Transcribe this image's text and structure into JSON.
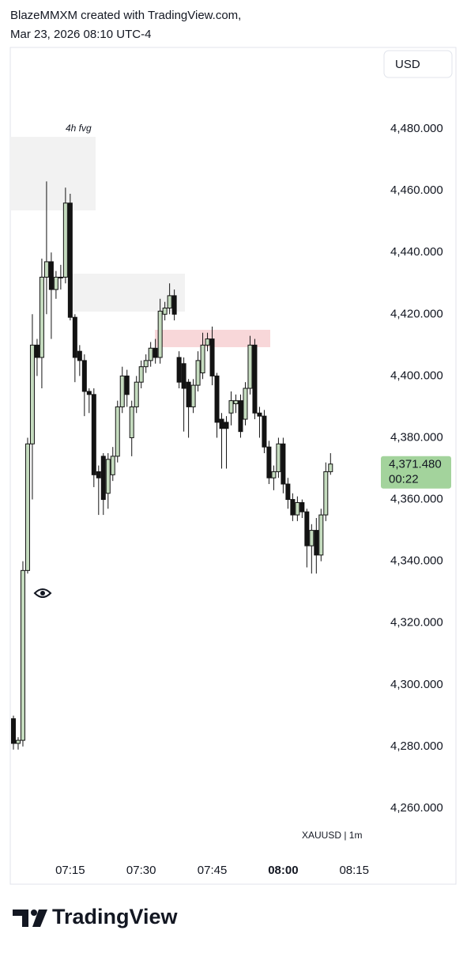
{
  "header": {
    "line1": "BlazeMMXM created with TradingView.com,",
    "line2": "Mar 23, 2026 08:10 UTC-4"
  },
  "currency_button": "USD",
  "symbol_label": "XAUUSD | 1m",
  "brand": "TradingView",
  "chart_data": {
    "type": "candlestick",
    "annotation": "4h fvg",
    "x": [
      "07:03",
      "07:04",
      "07:05",
      "07:06",
      "07:07",
      "07:08",
      "07:09",
      "07:10",
      "07:11",
      "07:12",
      "07:13",
      "07:14",
      "07:15",
      "07:16",
      "07:17",
      "07:18",
      "07:19",
      "07:20",
      "07:21",
      "07:22",
      "07:23",
      "07:24",
      "07:25",
      "07:26",
      "07:27",
      "07:28",
      "07:29",
      "07:30",
      "07:31",
      "07:32",
      "07:33",
      "07:34",
      "07:35",
      "07:36",
      "07:37",
      "07:38",
      "07:39",
      "07:40",
      "07:41",
      "07:42",
      "07:43",
      "07:44",
      "07:45",
      "07:46",
      "07:47",
      "07:48",
      "07:49",
      "07:50",
      "07:51",
      "07:52",
      "07:53",
      "07:54",
      "07:55",
      "07:56",
      "07:57",
      "07:58",
      "07:59",
      "08:00",
      "08:01",
      "08:02",
      "08:03",
      "08:04",
      "08:05",
      "08:06",
      "08:07",
      "08:08",
      "08:09",
      "08:10"
    ],
    "open": [
      4289,
      4281,
      4282,
      4337,
      4378,
      4410,
      4406,
      4432,
      4437,
      4428,
      4432,
      4432,
      4456,
      4419,
      4408,
      4405,
      4395,
      4394,
      4369,
      4374,
      4362,
      4368,
      4374,
      4390,
      4400,
      4380,
      4390,
      4398,
      4403,
      4405,
      4409,
      4406,
      4420,
      4422,
      4426,
      4406,
      4404,
      4398,
      4390,
      4397,
      4401,
      4410,
      4412,
      4400,
      4386,
      4385,
      4388,
      4391,
      4392,
      4386,
      4396,
      4410,
      4388,
      4387,
      4377,
      4367,
      4369,
      4378,
      4365,
      4360,
      4355,
      4359,
      4356,
      4345,
      4350,
      4342,
      4355,
      4369
    ],
    "high": [
      4290,
      4283,
      4340,
      4380,
      4420,
      4412,
      4438,
      4463,
      4440,
      4434,
      4436,
      4461,
      4459,
      4420,
      4410,
      4407,
      4396,
      4396,
      4371,
      4375,
      4375,
      4377,
      4392,
      4403,
      4402,
      4392,
      4400,
      4405,
      4407,
      4411,
      4412,
      4425,
      4424,
      4430,
      4428,
      4408,
      4406,
      4399,
      4399,
      4408,
      4414,
      4414,
      4416,
      4401,
      4388,
      4387,
      4395,
      4394,
      4394,
      4398,
      4413,
      4412,
      4390,
      4389,
      4379,
      4371,
      4380,
      4380,
      4367,
      4362,
      4361,
      4360,
      4357,
      4352,
      4354,
      4357,
      4372,
      4375
    ],
    "low": [
      4279,
      4279,
      4280,
      4336,
      4360,
      4400,
      4396,
      4420,
      4412,
      4425,
      4428,
      4430,
      4418,
      4398,
      4400,
      4387,
      4388,
      4364,
      4355,
      4355,
      4357,
      4366,
      4372,
      4388,
      4390,
      4374,
      4388,
      4396,
      4401,
      4403,
      4404,
      4404,
      4418,
      4420,
      4418,
      4396,
      4382,
      4380,
      4388,
      4395,
      4399,
      4408,
      4397,
      4380,
      4370,
      4370,
      4384,
      4388,
      4380,
      4384,
      4394,
      4386,
      4380,
      4375,
      4365,
      4363,
      4367,
      4362,
      4357,
      4353,
      4353,
      4354,
      4338,
      4336,
      4336,
      4340,
      4353,
      4368
    ],
    "close": [
      4281,
      4282,
      4337,
      4378,
      4410,
      4406,
      4432,
      4437,
      4428,
      4432,
      4432,
      4456,
      4419,
      4406,
      4405,
      4395,
      4394,
      4368,
      4367,
      4360,
      4373,
      4374,
      4390,
      4400,
      4394,
      4390,
      4398,
      4403,
      4405,
      4409,
      4406,
      4421,
      4422,
      4426,
      4420,
      4398,
      4396,
      4390,
      4397,
      4405,
      4410,
      4412,
      4400,
      4385,
      4383,
      4383,
      4392,
      4392,
      4382,
      4396,
      4410,
      4388,
      4387,
      4377,
      4367,
      4369,
      4378,
      4365,
      4360,
      4355,
      4359,
      4356,
      4345,
      4350,
      4342,
      4355,
      4369,
      4371.48
    ],
    "up_color": "#c5dcbf",
    "down_color": "#131313",
    "last_price": {
      "value": 4371.48,
      "label": "4,371.480"
    },
    "countdown": "00:22",
    "last_price_color": "#a3d39c",
    "xlim": [
      "07:02",
      "08:37"
    ],
    "xticks": [
      "07:15",
      "07:30",
      "07:45",
      "08:00",
      "08:15"
    ],
    "ylim": [
      4235.4,
      4506.4
    ],
    "yticks": [
      {
        "value": 4260,
        "label": "4,260.000"
      },
      {
        "value": 4280,
        "label": "4,280.000"
      },
      {
        "value": 4300,
        "label": "4,300.000"
      },
      {
        "value": 4320,
        "label": "4,320.000"
      },
      {
        "value": 4340,
        "label": "4,340.000"
      },
      {
        "value": 4360,
        "label": "4,360.000"
      },
      {
        "value": 4380,
        "label": "4,380.000"
      },
      {
        "value": 4400,
        "label": "4,400.000"
      },
      {
        "value": 4420,
        "label": "4,420.000"
      },
      {
        "value": 4440,
        "label": "4,440.000"
      },
      {
        "value": 4460,
        "label": "4,460.000"
      },
      {
        "value": 4480,
        "label": "4,480.000"
      }
    ],
    "grid": false
  }
}
